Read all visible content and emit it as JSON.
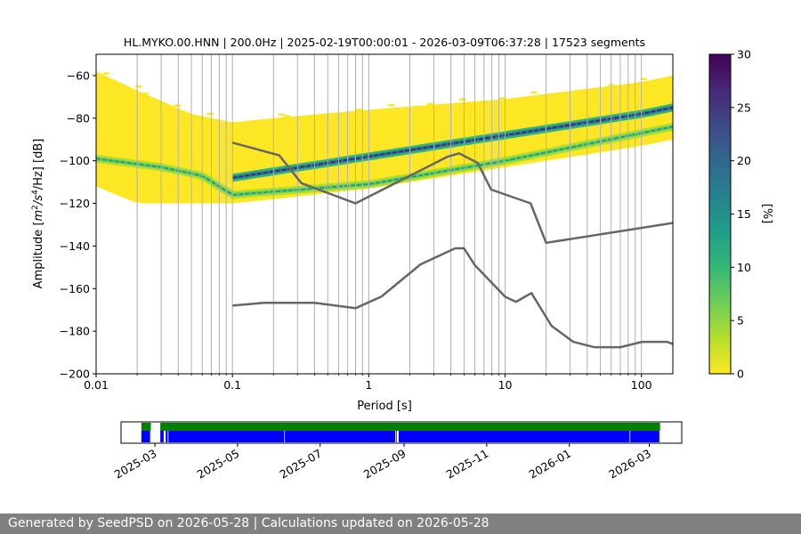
{
  "colors": {
    "curve": "#666666",
    "grid": "#b0b0b0",
    "axis": "#000000",
    "footer_bg": "#808080",
    "coverage_data": "#0000ff",
    "coverage_percent": "#008000",
    "colormap": [
      "#fde725",
      "#b5de2b",
      "#6ece58",
      "#35b779",
      "#1f9e89",
      "#26828e",
      "#31688e",
      "#3e4989",
      "#482878",
      "#440154"
    ]
  },
  "chart_data": [
    {
      "type": "heatmap",
      "title": "HL.MYKO.00.HNN | 200.0Hz | 2025-02-19T00:00:01 - 2026-03-09T06:37:28 | 17523 segments",
      "xlabel": "Period [s]",
      "ylabel_parts": {
        "pre": "Amplitude [",
        "m": "m",
        "exp1": "2",
        "s": "/s",
        "exp2": "4",
        "hz": "/Hz] [dB]"
      },
      "x_scale": "log",
      "xlim": [
        0.01,
        170
      ],
      "ylim": [
        -200,
        -50
      ],
      "x_ticks": [
        {
          "v": 0.01,
          "label": "0.01"
        },
        {
          "v": 0.1,
          "label": "0.1"
        },
        {
          "v": 1,
          "label": "1"
        },
        {
          "v": 10,
          "label": "10"
        },
        {
          "v": 100,
          "label": "100"
        }
      ],
      "y_ticks": [
        {
          "v": -60,
          "label": "−60"
        },
        {
          "v": -80,
          "label": "−80"
        },
        {
          "v": -100,
          "label": "−100"
        },
        {
          "v": -120,
          "label": "−120"
        },
        {
          "v": -140,
          "label": "−140"
        },
        {
          "v": -160,
          "label": "−160"
        },
        {
          "v": -180,
          "label": "−180"
        },
        {
          "v": -200,
          "label": "−200"
        }
      ],
      "grid": "vertical",
      "colorbar": {
        "label": "[%]",
        "range": [
          0,
          30
        ],
        "ticks": [
          {
            "v": 0,
            "label": "0"
          },
          {
            "v": 5,
            "label": "5"
          },
          {
            "v": 10,
            "label": "10"
          },
          {
            "v": 15,
            "label": "15"
          },
          {
            "v": 20,
            "label": "20"
          },
          {
            "v": 25,
            "label": "25"
          },
          {
            "v": 30,
            "label": "30"
          }
        ]
      },
      "density_outline": {
        "upper": [
          [
            0.01,
            -58
          ],
          [
            0.02,
            -67
          ],
          [
            0.05,
            -78
          ],
          [
            0.1,
            -82
          ],
          [
            0.2,
            -80
          ],
          [
            1,
            -76
          ],
          [
            10,
            -71
          ],
          [
            100,
            -63
          ],
          [
            170,
            -60
          ]
        ],
        "lower": [
          [
            0.01,
            -112
          ],
          [
            0.02,
            -120
          ],
          [
            0.1,
            -120
          ],
          [
            0.2,
            -118
          ],
          [
            1,
            -113
          ],
          [
            10,
            -103
          ],
          [
            100,
            -93
          ],
          [
            170,
            -90
          ]
        ]
      },
      "modes": [
        {
          "name": "upper",
          "percent": 25,
          "points": [
            [
              0.1,
              -108
            ],
            [
              1,
              -98
            ],
            [
              10,
              -88
            ],
            [
              100,
              -78
            ],
            [
              170,
              -75
            ]
          ]
        },
        {
          "name": "lower",
          "percent": 12,
          "points": [
            [
              0.01,
              -99
            ],
            [
              0.03,
              -103
            ],
            [
              0.06,
              -107
            ],
            [
              0.1,
              -116
            ],
            [
              1,
              -111
            ],
            [
              10,
              -100
            ],
            [
              100,
              -87
            ],
            [
              170,
              -84
            ]
          ]
        }
      ],
      "noise_models": [
        {
          "name": "high",
          "points": [
            [
              0.1,
              -91.5
            ],
            [
              0.22,
              -97.4
            ],
            [
              0.32,
              -110.5
            ],
            [
              0.8,
              -120
            ],
            [
              3.8,
              -98
            ],
            [
              4.6,
              -96.5
            ],
            [
              6.3,
              -101
            ],
            [
              7.9,
              -113.5
            ],
            [
              15.4,
              -120
            ],
            [
              20,
              -138.5
            ],
            [
              354.8,
              -126
            ]
          ]
        },
        {
          "name": "low",
          "points": [
            [
              0.1,
              -168
            ],
            [
              0.17,
              -166.7
            ],
            [
              0.4,
              -166.7
            ],
            [
              0.8,
              -169.2
            ],
            [
              1.24,
              -163.7
            ],
            [
              2.4,
              -148.6
            ],
            [
              4.3,
              -141.1
            ],
            [
              5,
              -141.1
            ],
            [
              6,
              -149
            ],
            [
              10,
              -163.8
            ],
            [
              12,
              -166.2
            ],
            [
              15.6,
              -162.1
            ],
            [
              21.9,
              -177.5
            ],
            [
              31.6,
              -185
            ],
            [
              45,
              -187.5
            ],
            [
              70,
              -187.5
            ],
            [
              101,
              -185
            ],
            [
              154,
              -185
            ],
            [
              170,
              -186
            ]
          ]
        }
      ]
    },
    {
      "type": "timeline",
      "xlim": [
        "2025-02-04",
        "2026-03-25"
      ],
      "x_ticks": [
        {
          "date": "2025-03-01",
          "label": "2025-03"
        },
        {
          "date": "2025-05-01",
          "label": "2025-05"
        },
        {
          "date": "2025-07-01",
          "label": "2025-07"
        },
        {
          "date": "2025-09-01",
          "label": "2025-09"
        },
        {
          "date": "2025-11-01",
          "label": "2025-11"
        },
        {
          "date": "2026-01-01",
          "label": "2026-01"
        },
        {
          "date": "2026-03-01",
          "label": "2026-03"
        }
      ],
      "percent_segments": [
        [
          "2025-02-19",
          "2025-02-26"
        ],
        [
          "2025-03-05",
          "2026-03-09"
        ]
      ],
      "data_segments": [
        [
          "2025-02-19",
          "2025-02-26"
        ],
        [
          "2025-03-05",
          "2025-03-08"
        ],
        [
          "2025-03-09",
          "2025-03-11"
        ],
        [
          "2025-03-11",
          "2025-06-05"
        ],
        [
          "2025-06-05",
          "2025-08-26"
        ],
        [
          "2025-08-26",
          "2025-08-27"
        ],
        [
          "2025-08-28",
          "2026-02-15"
        ],
        [
          "2026-02-15",
          "2026-03-09"
        ]
      ]
    }
  ],
  "footer": {
    "text": "Generated by SeedPSD on 2026-05-28 | Calculations updated on 2026-05-28"
  }
}
